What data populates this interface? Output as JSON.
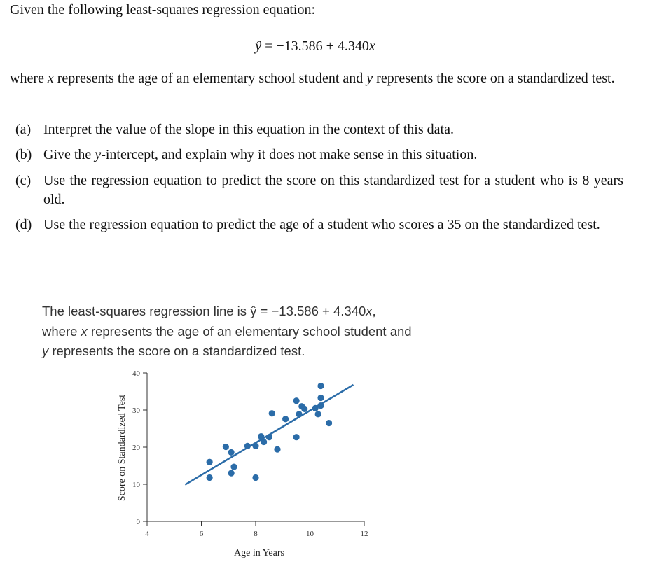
{
  "problem": {
    "lead": "Given the following least-squares regression equation:",
    "equation": [
      "ŷ",
      " = −13.586 + 4.340",
      "x"
    ],
    "context": [
      "where ",
      "x",
      " represents the age of an elementary school student and ",
      "y",
      " represents the score on a standardized test."
    ],
    "parts": [
      {
        "label": "(a)",
        "text": [
          "Interpret the value of the slope in this equation in the context of this data."
        ]
      },
      {
        "label": "(b)",
        "text": [
          "Give the ",
          "y",
          "-intercept, and explain why it does not make sense in this situation."
        ]
      },
      {
        "label": "(c)",
        "text": [
          "Use the regression equation to predict the score on this standardized test for a student who is 8 years old."
        ]
      },
      {
        "label": "(d)",
        "text": [
          "Use the regression equation to predict the age of a student who scores a 35 on the standardized test."
        ]
      }
    ]
  },
  "figure": {
    "caption": [
      [
        "The least-squares regression line is ŷ = −13.586 + 4.340",
        "x",
        ","
      ],
      [
        "where ",
        "x",
        " represents the age of an elementary school student and"
      ],
      [
        "y",
        " represents the score on a standardized test."
      ]
    ]
  },
  "chart_data": {
    "type": "scatter",
    "x_label": "Age in Years",
    "y_label": "Score on Standardized Test",
    "color": "#2b6ca8",
    "x": [
      6.3,
      6.3,
      6.9,
      7.1,
      7.2,
      7.1,
      7.7,
      8.0,
      8.0,
      8.2,
      8.3,
      8.5,
      8.6,
      8.8,
      9.1,
      9.5,
      9.5,
      9.6,
      9.7,
      9.8,
      10.2,
      10.3,
      10.4,
      10.4,
      10.4,
      10.7
    ],
    "values": [
      16.0,
      11.8,
      20.1,
      18.6,
      14.7,
      13.0,
      20.3,
      11.8,
      20.3,
      22.9,
      21.4,
      22.7,
      29.1,
      19.4,
      27.6,
      22.7,
      32.5,
      28.9,
      31.0,
      30.3,
      30.5,
      28.9,
      36.5,
      33.3,
      31.2,
      26.5
    ],
    "fit_line": {
      "x": [
        5.4,
        11.6
      ],
      "values": [
        9.9,
        36.8
      ]
    },
    "xlim": [
      4,
      12
    ],
    "ylim": [
      0,
      40
    ],
    "xticks": [
      4,
      6,
      8,
      10,
      12
    ],
    "yticks": [
      0,
      10,
      20,
      30,
      40
    ]
  }
}
